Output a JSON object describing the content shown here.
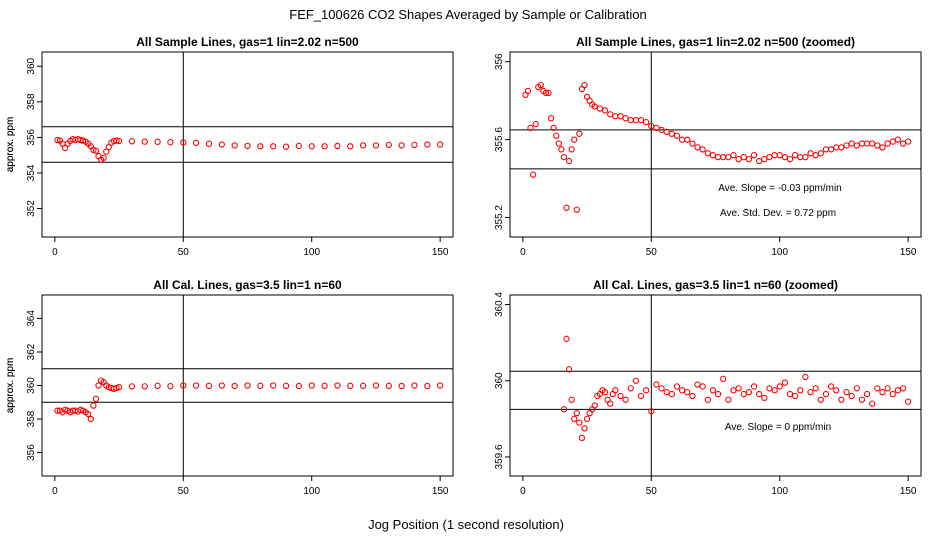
{
  "figure": {
    "title": "FEF_100626  CO2 Shapes Averaged by Sample or Calibration",
    "xlabel": "Jog Position (1 second resolution)",
    "point_color": "#ff0000"
  },
  "chart_data": [
    {
      "type": "scatter",
      "title": "All Sample Lines, gas=1 lin=2.02 n=500",
      "xlabel": "Jog Position (1 second resolution)",
      "ylabel": "approx. ppm",
      "xlim": [
        -5,
        155
      ],
      "ylim": [
        350.4,
        360.8
      ],
      "xticks": [
        0,
        50,
        100,
        150
      ],
      "yticks": [
        352,
        354,
        356,
        358,
        360
      ],
      "ref_hlines": [
        354.6,
        356.6
      ],
      "ref_vline": 50,
      "annotations": [],
      "series": [
        {
          "name": "CO2",
          "x": [
            1,
            2,
            3,
            4,
            5,
            6,
            7,
            8,
            9,
            10,
            11,
            12,
            13,
            14,
            15,
            16,
            17,
            18,
            19,
            20,
            21,
            22,
            23,
            24,
            25,
            30,
            35,
            40,
            45,
            50,
            55,
            60,
            65,
            70,
            75,
            80,
            85,
            90,
            95,
            100,
            105,
            110,
            115,
            120,
            125,
            130,
            135,
            140,
            145,
            150
          ],
          "y": [
            355.85,
            355.82,
            355.65,
            355.4,
            355.65,
            355.8,
            355.9,
            355.85,
            355.9,
            355.85,
            355.82,
            355.75,
            355.65,
            355.5,
            355.3,
            355.25,
            354.95,
            354.75,
            354.85,
            355.2,
            355.45,
            355.7,
            355.8,
            355.82,
            355.8,
            355.78,
            355.76,
            355.75,
            355.73,
            355.72,
            355.69,
            355.64,
            355.6,
            355.55,
            355.52,
            355.5,
            355.5,
            355.48,
            355.52,
            355.5,
            355.5,
            355.52,
            355.5,
            355.55,
            355.55,
            355.58,
            355.55,
            355.58,
            355.6,
            355.6
          ]
        }
      ]
    },
    {
      "type": "scatter",
      "title": "All Sample Lines, gas=1 lin=2.02 n=500 (zoomed)",
      "xlabel": "Jog Position (1 second resolution)",
      "ylabel": "approx. ppm",
      "xlim": [
        -5,
        155
      ],
      "ylim": [
        355.1,
        356.05
      ],
      "xticks": [
        0,
        50,
        100,
        150
      ],
      "yticks": [
        355.2,
        355.6,
        356.0
      ],
      "ref_hlines": [
        355.45,
        355.65
      ],
      "ref_vline": 50,
      "annotations": [
        "Ave. Slope =  -0.03  ppm/min",
        "Ave. Std. Dev. =  0.72  ppm"
      ],
      "series": [
        {
          "name": "CO2",
          "x": [
            1,
            2,
            3,
            4,
            5,
            6,
            7,
            8,
            9,
            10,
            11,
            12,
            13,
            14,
            15,
            16,
            17,
            18,
            19,
            20,
            21,
            22,
            23,
            24,
            25,
            26,
            27,
            28,
            30,
            32,
            34,
            36,
            38,
            40,
            42,
            44,
            46,
            48,
            50,
            52,
            54,
            56,
            58,
            60,
            62,
            64,
            66,
            68,
            70,
            72,
            74,
            76,
            78,
            80,
            82,
            84,
            86,
            88,
            90,
            92,
            94,
            96,
            98,
            100,
            102,
            104,
            106,
            108,
            110,
            112,
            114,
            116,
            118,
            120,
            122,
            124,
            126,
            128,
            130,
            132,
            134,
            136,
            138,
            140,
            142,
            144,
            146,
            148,
            150
          ],
          "y": [
            355.83,
            355.85,
            355.66,
            355.42,
            355.68,
            355.87,
            355.88,
            355.85,
            355.84,
            355.84,
            355.71,
            355.66,
            355.62,
            355.58,
            355.55,
            355.51,
            355.25,
            355.49,
            355.55,
            355.6,
            355.24,
            355.63,
            355.86,
            355.88,
            355.82,
            355.8,
            355.78,
            355.77,
            355.76,
            355.75,
            355.73,
            355.72,
            355.72,
            355.71,
            355.7,
            355.7,
            355.7,
            355.69,
            355.67,
            355.66,
            355.65,
            355.64,
            355.63,
            355.62,
            355.6,
            355.6,
            355.58,
            355.56,
            355.55,
            355.53,
            355.52,
            355.51,
            355.51,
            355.51,
            355.52,
            355.5,
            355.51,
            355.5,
            355.52,
            355.49,
            355.5,
            355.51,
            355.52,
            355.52,
            355.51,
            355.5,
            355.52,
            355.51,
            355.51,
            355.53,
            355.52,
            355.53,
            355.55,
            355.55,
            355.56,
            355.56,
            355.57,
            355.58,
            355.57,
            355.58,
            355.58,
            355.58,
            355.57,
            355.56,
            355.58,
            355.59,
            355.6,
            355.58,
            355.59
          ]
        }
      ]
    },
    {
      "type": "scatter",
      "title": "All Cal. Lines, gas=3.5 lin=1 n=60",
      "xlabel": "Jog Position (1 second resolution)",
      "ylabel": "approx. ppm",
      "xlim": [
        -5,
        155
      ],
      "ylim": [
        354.6,
        365.4
      ],
      "xticks": [
        0,
        50,
        100,
        150
      ],
      "yticks": [
        356,
        358,
        360,
        362,
        364
      ],
      "ref_hlines": [
        359,
        361
      ],
      "ref_vline": 50,
      "annotations": [],
      "series": [
        {
          "name": "CO2",
          "x": [
            1,
            2,
            3,
            4,
            5,
            6,
            7,
            8,
            9,
            10,
            11,
            12,
            13,
            14,
            15,
            16,
            17,
            18,
            19,
            20,
            21,
            22,
            23,
            24,
            25,
            30,
            35,
            40,
            45,
            50,
            55,
            60,
            65,
            70,
            75,
            80,
            85,
            90,
            95,
            100,
            105,
            110,
            115,
            120,
            125,
            130,
            135,
            140,
            145,
            150
          ],
          "y": [
            358.5,
            358.5,
            358.4,
            358.55,
            358.5,
            358.4,
            358.5,
            358.5,
            358.45,
            358.55,
            358.5,
            358.4,
            358.3,
            358.0,
            358.8,
            359.2,
            360.0,
            360.3,
            360.2,
            360.0,
            359.9,
            359.85,
            359.8,
            359.85,
            359.9,
            359.95,
            359.95,
            359.98,
            359.96,
            360.0,
            360.0,
            359.98,
            360.0,
            359.97,
            360.0,
            359.98,
            360.0,
            359.98,
            359.97,
            360.0,
            359.98,
            360.0,
            359.98,
            359.98,
            360.0,
            359.98,
            359.97,
            360.0,
            359.97,
            360.0
          ]
        }
      ]
    },
    {
      "type": "scatter",
      "title": "All Cal. Lines, gas=3.5 lin=1 n=60 (zoomed)",
      "xlabel": "Jog Position (1 second resolution)",
      "ylabel": "approx. ppm",
      "xlim": [
        -5,
        155
      ],
      "ylim": [
        359.5,
        360.45
      ],
      "xticks": [
        0,
        50,
        100,
        150
      ],
      "yticks": [
        359.6,
        360.0,
        360.4
      ],
      "ref_hlines": [
        359.85,
        360.05
      ],
      "ref_vline": 50,
      "annotations": [
        "Ave. Slope =  0  ppm/min"
      ],
      "series": [
        {
          "name": "CO2",
          "x": [
            16,
            17,
            18,
            19,
            20,
            21,
            22,
            23,
            24,
            25,
            26,
            27,
            28,
            29,
            30,
            31,
            32,
            33,
            34,
            35,
            36,
            38,
            40,
            42,
            44,
            46,
            48,
            50,
            52,
            54,
            56,
            58,
            60,
            62,
            64,
            66,
            68,
            70,
            72,
            74,
            76,
            78,
            80,
            82,
            84,
            86,
            88,
            90,
            92,
            94,
            96,
            98,
            100,
            102,
            104,
            106,
            108,
            110,
            112,
            114,
            116,
            118,
            120,
            122,
            124,
            126,
            128,
            130,
            132,
            134,
            136,
            138,
            140,
            142,
            144,
            146,
            148,
            150
          ],
          "y": [
            359.85,
            360.22,
            360.06,
            359.9,
            359.8,
            359.83,
            359.78,
            359.7,
            359.75,
            359.8,
            359.83,
            359.85,
            359.87,
            359.92,
            359.93,
            359.95,
            359.94,
            359.9,
            359.88,
            359.93,
            359.95,
            359.92,
            359.9,
            359.96,
            360.0,
            359.92,
            359.95,
            359.84,
            359.98,
            359.96,
            359.94,
            359.93,
            359.97,
            359.95,
            359.94,
            359.92,
            359.98,
            359.97,
            359.9,
            359.95,
            359.93,
            360.01,
            359.9,
            359.95,
            359.96,
            359.93,
            359.94,
            359.97,
            359.93,
            359.91,
            359.96,
            359.95,
            359.97,
            359.99,
            359.93,
            359.92,
            359.95,
            360.02,
            359.94,
            359.96,
            359.9,
            359.93,
            359.97,
            359.95,
            359.9,
            359.94,
            359.92,
            359.96,
            359.9,
            359.93,
            359.88,
            359.96,
            359.94,
            359.96,
            359.93,
            359.95,
            359.96,
            359.89
          ]
        }
      ]
    }
  ]
}
